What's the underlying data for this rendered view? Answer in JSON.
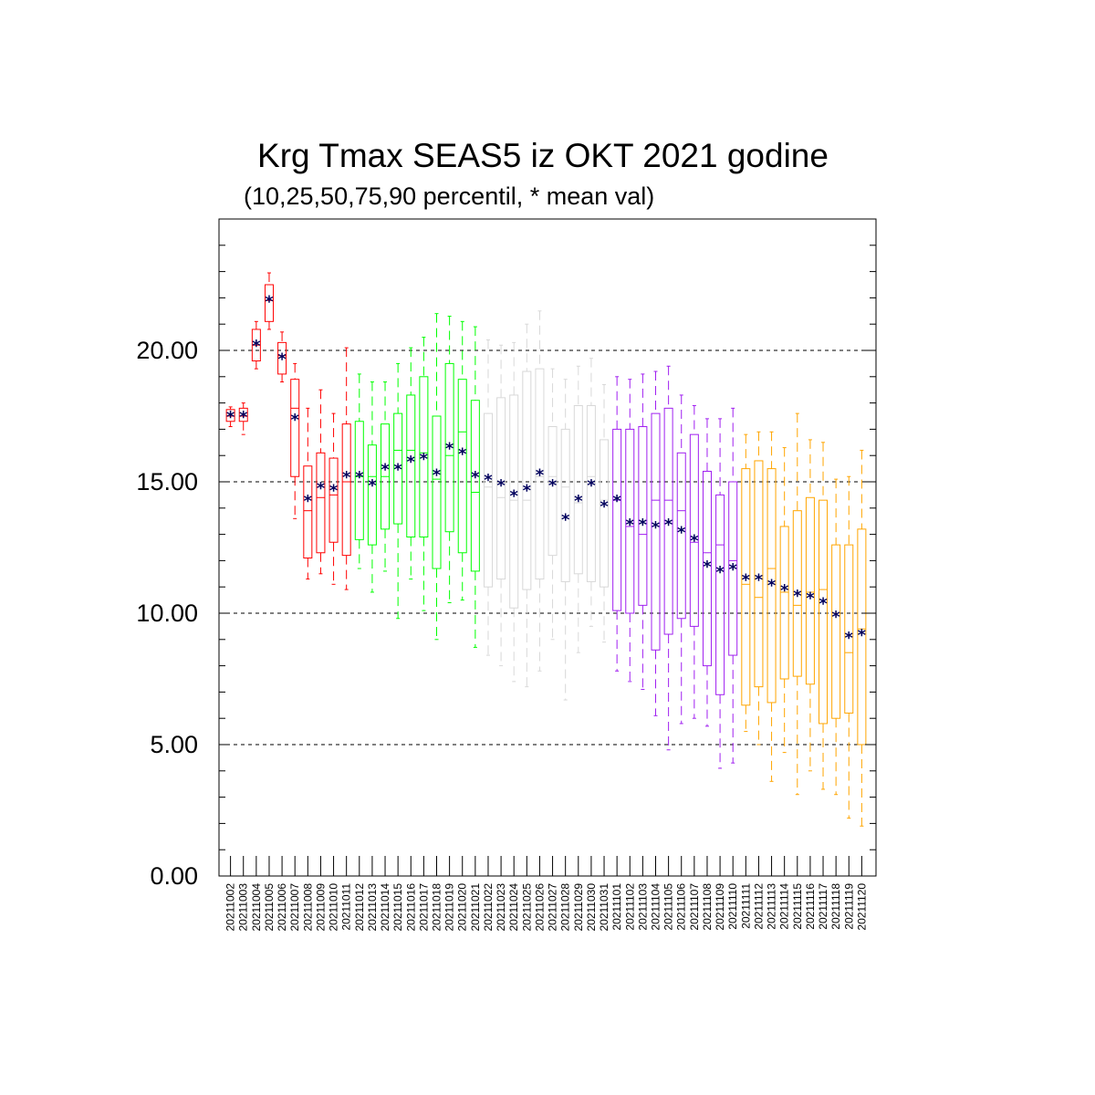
{
  "chart_data": {
    "type": "box",
    "title": "Krg Tmax SEAS5 iz OKT 2021 godine",
    "subtitle": "(10,25,50,75,90 percentil, * mean val)",
    "xlabel": "",
    "ylabel": "",
    "ylim": [
      0,
      25
    ],
    "y_ticks": [
      "0.00",
      "5.00",
      "10.00",
      "15.00",
      "20.00"
    ],
    "grid": "dashed horizontal at 5, 10, 15, 20",
    "mean_marker_color": "#00005c",
    "categories": [
      "20211002",
      "20211003",
      "20211004",
      "20211005",
      "20211006",
      "20211007",
      "20211008",
      "20211009",
      "20211010",
      "20211011",
      "20211012",
      "20211013",
      "20211014",
      "20211015",
      "20211016",
      "20211017",
      "20211018",
      "20211019",
      "20211020",
      "20211021",
      "20211022",
      "20211023",
      "20211024",
      "20211025",
      "20211026",
      "20211027",
      "20211028",
      "20211029",
      "20211030",
      "20211031",
      "20211101",
      "20211102",
      "20211103",
      "20211104",
      "20211105",
      "20211106",
      "20211107",
      "20211108",
      "20211109",
      "20211110",
      "20211111",
      "20211112",
      "20211113",
      "20211114",
      "20211115",
      "20211116",
      "20211117",
      "20211118",
      "20211119",
      "20211120"
    ],
    "series": [
      {
        "color": "#ff0000",
        "boxes": [
          {
            "p10": 17.1,
            "p25": 17.3,
            "p50": 17.5,
            "p75": 17.75,
            "p90": 17.85,
            "mean": 17.5
          },
          {
            "p10": 16.8,
            "p25": 17.3,
            "p50": 17.5,
            "p75": 17.8,
            "p90": 18.0,
            "mean": 17.5
          },
          {
            "p10": 19.3,
            "p25": 19.6,
            "p50": 20.2,
            "p75": 20.8,
            "p90": 21.1,
            "mean": 20.2
          },
          {
            "p10": 20.8,
            "p25": 21.1,
            "p50": 21.9,
            "p75": 22.5,
            "p90": 22.95,
            "mean": 21.9
          },
          {
            "p10": 18.8,
            "p25": 19.1,
            "p50": 19.8,
            "p75": 20.3,
            "p90": 20.7,
            "mean": 19.7
          },
          {
            "p10": 13.6,
            "p25": 15.2,
            "p50": 17.8,
            "p75": 18.9,
            "p90": 19.5,
            "mean": 17.4
          },
          {
            "p10": 11.3,
            "p25": 12.1,
            "p50": 13.9,
            "p75": 15.6,
            "p90": 17.8,
            "mean": 14.3
          },
          {
            "p10": 11.5,
            "p25": 12.3,
            "p50": 14.4,
            "p75": 16.1,
            "p90": 18.5,
            "mean": 14.8
          },
          {
            "p10": 11.1,
            "p25": 12.7,
            "p50": 14.5,
            "p75": 15.9,
            "p90": 17.6,
            "mean": 14.7
          },
          {
            "p10": 10.9,
            "p25": 12.2,
            "p50": 15.0,
            "p75": 17.2,
            "p90": 20.1,
            "mean": 15.2
          }
        ]
      },
      {
        "color": "#00ff00",
        "boxes": [
          {
            "p10": 11.7,
            "p25": 12.8,
            "p50": 15.2,
            "p75": 17.3,
            "p90": 19.1,
            "mean": 15.2
          },
          {
            "p10": 10.8,
            "p25": 12.6,
            "p50": 15.2,
            "p75": 16.4,
            "p90": 18.8,
            "mean": 14.9
          },
          {
            "p10": 11.6,
            "p25": 13.2,
            "p50": 15.2,
            "p75": 17.2,
            "p90": 18.8,
            "mean": 15.5
          },
          {
            "p10": 9.8,
            "p25": 13.4,
            "p50": 16.2,
            "p75": 17.6,
            "p90": 19.5,
            "mean": 15.5
          },
          {
            "p10": 11.3,
            "p25": 12.9,
            "p50": 16.2,
            "p75": 18.3,
            "p90": 20.1,
            "mean": 15.8
          },
          {
            "p10": 10.1,
            "p25": 12.9,
            "p50": 16.1,
            "p75": 19.0,
            "p90": 20.5,
            "mean": 15.9
          },
          {
            "p10": 9.0,
            "p25": 11.7,
            "p50": 15.1,
            "p75": 17.5,
            "p90": 21.4,
            "mean": 15.3
          },
          {
            "p10": 10.4,
            "p25": 13.1,
            "p50": 16.0,
            "p75": 19.5,
            "p90": 21.3,
            "mean": 16.3
          },
          {
            "p10": 10.5,
            "p25": 12.3,
            "p50": 16.9,
            "p75": 18.9,
            "p90": 21.1,
            "mean": 16.1
          },
          {
            "p10": 8.7,
            "p25": 11.6,
            "p50": 14.6,
            "p75": 18.1,
            "p90": 20.9,
            "mean": 15.2
          }
        ]
      },
      {
        "color": "#d8d8d8",
        "boxes": [
          {
            "p10": 8.4,
            "p25": 11.0,
            "p50": 14.8,
            "p75": 17.6,
            "p90": 20.4,
            "mean": 15.1
          },
          {
            "p10": 8.0,
            "p25": 11.3,
            "p50": 14.4,
            "p75": 18.2,
            "p90": 20.2,
            "mean": 14.9
          },
          {
            "p10": 7.4,
            "p25": 10.2,
            "p50": 14.3,
            "p75": 18.3,
            "p90": 20.3,
            "mean": 14.5
          },
          {
            "p10": 7.2,
            "p25": 10.9,
            "p50": 14.3,
            "p75": 19.2,
            "p90": 21.0,
            "mean": 14.7
          },
          {
            "p10": 7.8,
            "p25": 11.3,
            "p50": 15.2,
            "p75": 19.3,
            "p90": 21.5,
            "mean": 15.3
          },
          {
            "p10": 9.0,
            "p25": 12.2,
            "p50": 15.2,
            "p75": 17.1,
            "p90": 19.3,
            "mean": 14.9
          },
          {
            "p10": 6.7,
            "p25": 11.2,
            "p50": 14.8,
            "p75": 17.0,
            "p90": 18.9,
            "mean": 13.6
          },
          {
            "p10": 8.5,
            "p25": 11.5,
            "p50": 14.2,
            "p75": 17.9,
            "p90": 19.4,
            "mean": 14.3
          },
          {
            "p10": 9.5,
            "p25": 11.2,
            "p50": 15.2,
            "p75": 17.9,
            "p90": 19.7,
            "mean": 14.9
          },
          {
            "p10": 8.9,
            "p25": 11.0,
            "p50": 14.3,
            "p75": 16.6,
            "p90": 18.7,
            "mean": 14.1
          }
        ]
      },
      {
        "color": "#a020f0",
        "boxes": [
          {
            "p10": 7.8,
            "p25": 10.1,
            "p50": 14.3,
            "p75": 17.0,
            "p90": 19.0,
            "mean": 14.3
          },
          {
            "p10": 7.4,
            "p25": 10.0,
            "p50": 13.3,
            "p75": 17.0,
            "p90": 18.9,
            "mean": 13.4
          },
          {
            "p10": 7.1,
            "p25": 10.3,
            "p50": 13.0,
            "p75": 17.1,
            "p90": 19.1,
            "mean": 13.4
          },
          {
            "p10": 6.1,
            "p25": 8.6,
            "p50": 14.3,
            "p75": 17.6,
            "p90": 19.2,
            "mean": 13.3
          },
          {
            "p10": 4.8,
            "p25": 9.2,
            "p50": 14.3,
            "p75": 17.8,
            "p90": 19.4,
            "mean": 13.4
          },
          {
            "p10": 5.8,
            "p25": 9.8,
            "p50": 13.9,
            "p75": 16.1,
            "p90": 18.3,
            "mean": 13.1
          },
          {
            "p10": 6.0,
            "p25": 9.5,
            "p50": 12.7,
            "p75": 16.8,
            "p90": 17.9,
            "mean": 12.8
          },
          {
            "p10": 5.7,
            "p25": 8.0,
            "p50": 12.3,
            "p75": 15.4,
            "p90": 17.4,
            "mean": 11.8
          },
          {
            "p10": 4.1,
            "p25": 6.9,
            "p50": 12.6,
            "p75": 14.5,
            "p90": 17.4,
            "mean": 11.6
          },
          {
            "p10": 4.3,
            "p25": 8.4,
            "p50": 12.0,
            "p75": 15.0,
            "p90": 17.8,
            "mean": 11.7
          }
        ]
      },
      {
        "color": "#ffa500",
        "boxes": [
          {
            "p10": 5.5,
            "p25": 6.5,
            "p50": 11.1,
            "p75": 15.5,
            "p90": 16.8,
            "mean": 11.3
          },
          {
            "p10": 5.0,
            "p25": 7.2,
            "p50": 10.6,
            "p75": 15.8,
            "p90": 16.9,
            "mean": 11.3
          },
          {
            "p10": 3.6,
            "p25": 6.6,
            "p50": 11.7,
            "p75": 15.5,
            "p90": 16.9,
            "mean": 11.1
          },
          {
            "p10": 4.7,
            "p25": 7.5,
            "p50": 10.8,
            "p75": 13.3,
            "p90": 16.3,
            "mean": 10.9
          },
          {
            "p10": 3.1,
            "p25": 7.6,
            "p50": 10.3,
            "p75": 13.9,
            "p90": 17.6,
            "mean": 10.7
          },
          {
            "p10": 4.0,
            "p25": 7.3,
            "p50": 10.8,
            "p75": 14.4,
            "p90": 16.6,
            "mean": 10.6
          },
          {
            "p10": 3.3,
            "p25": 5.8,
            "p50": 10.9,
            "p75": 14.3,
            "p90": 16.5,
            "mean": 10.4
          },
          {
            "p10": 3.1,
            "p25": 6.0,
            "p50": 10.0,
            "p75": 12.6,
            "p90": 15.1,
            "mean": 9.9
          },
          {
            "p10": 2.2,
            "p25": 6.2,
            "p50": 8.5,
            "p75": 12.6,
            "p90": 15.2,
            "mean": 9.1
          },
          {
            "p10": 1.9,
            "p25": 5.0,
            "p50": 9.4,
            "p75": 13.2,
            "p90": 16.2,
            "mean": 9.2
          }
        ]
      }
    ]
  }
}
